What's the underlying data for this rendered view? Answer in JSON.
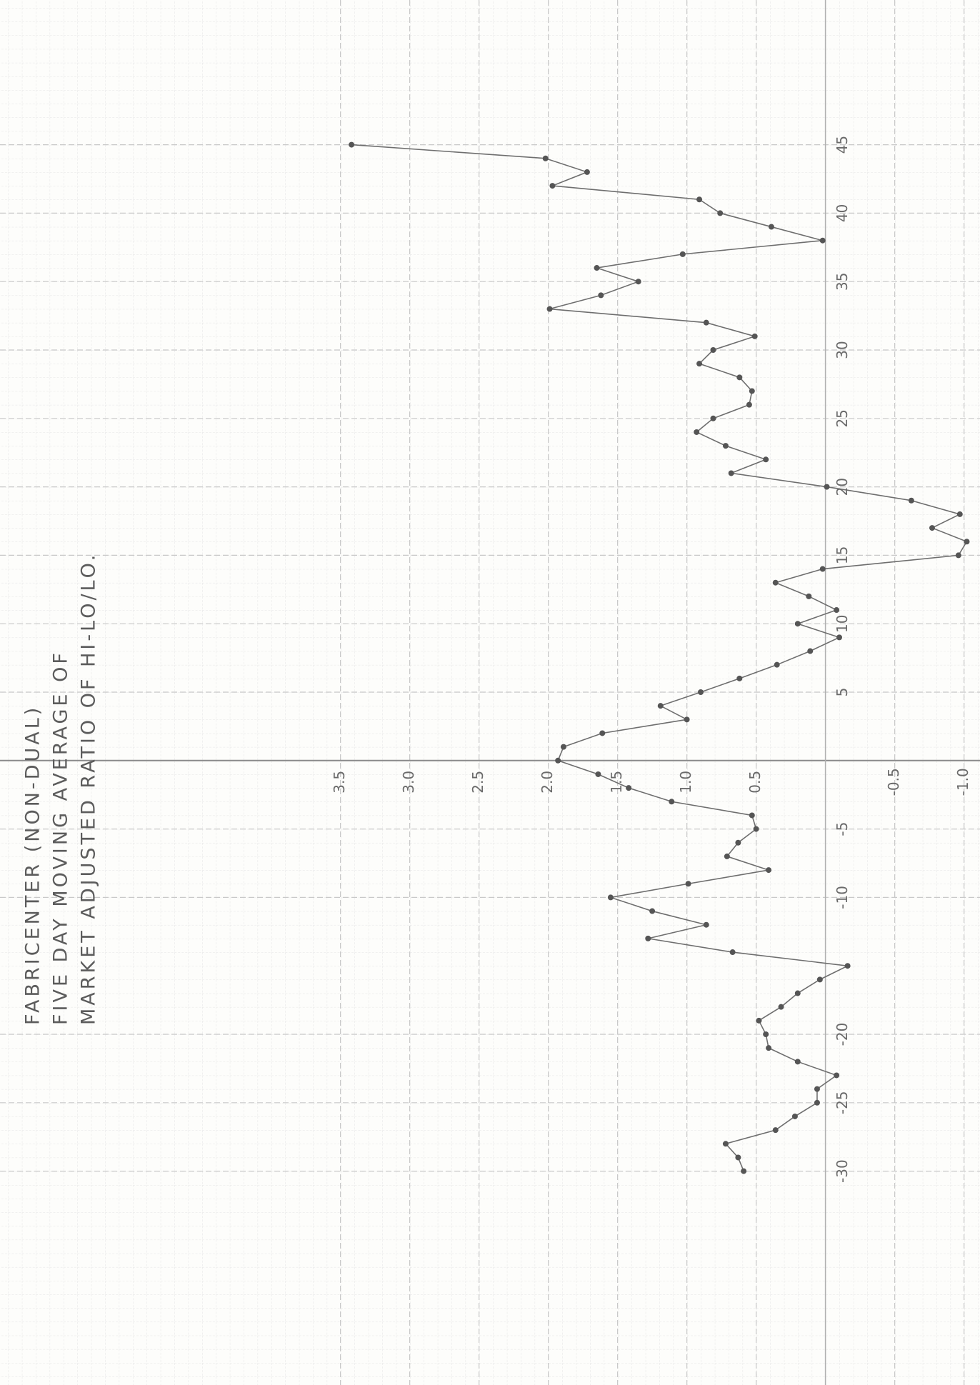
{
  "chart_data": {
    "type": "line",
    "title_lines": [
      "FABRICENTER (NON-DUAL)",
      "FIVE DAY MOVING AVERAGE OF",
      "MARKET ADJUSTED RATIO OF HI-LO/LO."
    ],
    "x": [
      -30,
      -29,
      -28,
      -27,
      -26,
      -25,
      -24,
      -23,
      -22,
      -21,
      -20,
      -19,
      -18,
      -17,
      -16,
      -15,
      -14,
      -13,
      -12,
      -11,
      -10,
      -9,
      -8,
      -7,
      -6,
      -5,
      -4,
      -3,
      -2,
      -1,
      0,
      1,
      2,
      3,
      4,
      5,
      6,
      7,
      8,
      9,
      10,
      11,
      12,
      13,
      14,
      15,
      16,
      17,
      18,
      19,
      20,
      21,
      22,
      23,
      24,
      25,
      26,
      27,
      28,
      29,
      30,
      31,
      32,
      33,
      34,
      35,
      36,
      37,
      38,
      39,
      40,
      41,
      42,
      43,
      44,
      45
    ],
    "series": [
      {
        "color": "#6e6e6e",
        "values": [
          0.59,
          0.63,
          0.72,
          0.36,
          0.22,
          0.06,
          0.06,
          -0.08,
          0.2,
          0.41,
          0.43,
          0.48,
          0.32,
          0.2,
          0.04,
          -0.16,
          0.67,
          1.28,
          0.86,
          1.25,
          1.55,
          0.99,
          0.41,
          0.71,
          0.63,
          0.5,
          0.53,
          1.11,
          1.42,
          1.64,
          1.93,
          1.89,
          1.61,
          1.0,
          1.19,
          0.9,
          0.62,
          0.35,
          0.11,
          -0.1,
          0.2,
          -0.08,
          0.12,
          0.36,
          0.02,
          -0.96,
          -1.02,
          -0.77,
          -0.97,
          -0.62,
          -0.01,
          0.68,
          0.43,
          0.72,
          0.93,
          0.81,
          0.55,
          0.53,
          0.62,
          0.91,
          0.81,
          0.51,
          0.86,
          1.99,
          1.62,
          1.35,
          1.65,
          1.03,
          0.02,
          0.39,
          0.76,
          0.91,
          1.97,
          1.72,
          2.02,
          3.42
        ]
      }
    ],
    "xlim": [
      -45,
      55
    ],
    "xticks": [
      -30,
      -25,
      -20,
      -10,
      -5,
      5,
      10,
      15,
      20,
      25,
      30,
      35,
      40,
      45
    ],
    "ylim": [
      -1.1,
      5.9
    ],
    "yticks": [
      3.5,
      {
        "value": 3,
        "label": "3.0"
      },
      2.5,
      {
        "value": 2,
        "label": "2.0"
      },
      1.5,
      {
        "value": 1,
        "label": "1.0"
      },
      0.5,
      -0.5,
      {
        "value": -1,
        "label": "-1.0"
      }
    ],
    "grid": true
  }
}
